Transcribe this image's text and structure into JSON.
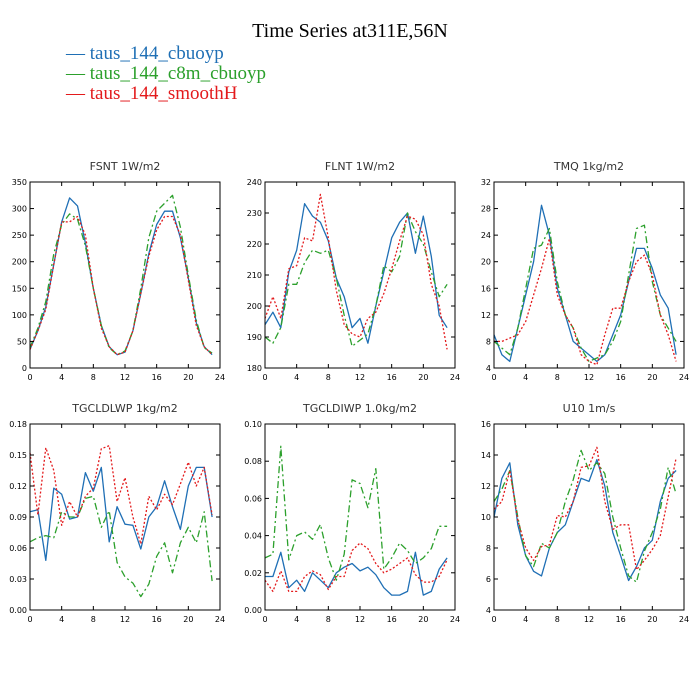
{
  "figure": {
    "title": "Time Series at311E,56N",
    "legend": [
      {
        "label": "— taus_144_cbuoyp",
        "color": "#1f6fb5"
      },
      {
        "label": "— taus_144_c8m_cbuoyp",
        "color": "#2ca02c"
      },
      {
        "label": "— taus_144_smoothH",
        "color": "#e31a1c"
      }
    ]
  },
  "chart_data": [
    {
      "type": "line",
      "title": "FSNT   1W/m2",
      "xlim": [
        0,
        24
      ],
      "ylim": [
        0,
        350
      ],
      "xticks": [
        0,
        4,
        8,
        12,
        16,
        20,
        24
      ],
      "yticks": [
        0,
        50,
        100,
        150,
        200,
        250,
        300,
        350
      ],
      "ytick_labels": [
        "0",
        "50",
        "100",
        "150",
        "200",
        "250",
        "300",
        "350"
      ],
      "x": [
        0,
        1,
        2,
        3,
        4,
        5,
        6,
        7,
        8,
        9,
        10,
        11,
        12,
        13,
        14,
        15,
        16,
        17,
        18,
        19,
        20,
        21,
        22,
        23
      ],
      "series": [
        {
          "name": "taus_144_cbuoyp",
          "color": "#1f6fb5",
          "dash": "",
          "values": [
            35,
            70,
            115,
            195,
            275,
            320,
            305,
            235,
            150,
            80,
            40,
            25,
            30,
            70,
            140,
            215,
            270,
            295,
            295,
            245,
            170,
            85,
            40,
            25
          ]
        },
        {
          "name": "taus_144_c8m_cbuoyp",
          "color": "#2ca02c",
          "dash": "7,3,2,3",
          "values": [
            38,
            75,
            125,
            215,
            270,
            290,
            280,
            230,
            150,
            80,
            38,
            25,
            32,
            70,
            150,
            245,
            295,
            310,
            325,
            265,
            175,
            90,
            38,
            28
          ]
        },
        {
          "name": "taus_144_smoothH",
          "color": "#e31a1c",
          "dash": "2,2",
          "values": [
            35,
            70,
            110,
            195,
            275,
            275,
            285,
            250,
            150,
            75,
            40,
            25,
            30,
            70,
            140,
            210,
            260,
            285,
            285,
            250,
            165,
            80,
            40,
            25
          ]
        }
      ]
    },
    {
      "type": "line",
      "title": "FLNT   1W/m2",
      "xlim": [
        0,
        24
      ],
      "ylim": [
        180,
        240
      ],
      "xticks": [
        0,
        4,
        8,
        12,
        16,
        20,
        24
      ],
      "yticks": [
        180,
        190,
        200,
        210,
        220,
        230,
        240
      ],
      "ytick_labels": [
        "180",
        "190",
        "200",
        "210",
        "220",
        "230",
        "240"
      ],
      "x": [
        0,
        1,
        2,
        3,
        4,
        5,
        6,
        7,
        8,
        9,
        10,
        11,
        12,
        13,
        14,
        15,
        16,
        17,
        18,
        19,
        20,
        21,
        22,
        23
      ],
      "series": [
        {
          "name": "taus_144_cbuoyp",
          "color": "#1f6fb5",
          "dash": "",
          "values": [
            194,
            198,
            193,
            211,
            218,
            233,
            229,
            227,
            221,
            209,
            203,
            193,
            196,
            188,
            200,
            211,
            222,
            227,
            230,
            217,
            229,
            216,
            197,
            193
          ]
        },
        {
          "name": "taus_144_c8m_cbuoyp",
          "color": "#2ca02c",
          "dash": "7,3,2,3",
          "values": [
            190,
            188,
            193,
            207,
            207,
            214,
            218,
            217,
            218,
            209,
            197,
            187,
            189,
            191,
            200,
            213,
            211,
            216,
            230,
            224,
            220,
            211,
            203,
            207
          ]
        },
        {
          "name": "taus_144_smoothH",
          "color": "#e31a1c",
          "dash": "2,2",
          "values": [
            196,
            203,
            196,
            212,
            213,
            222,
            221,
            236,
            222,
            205,
            194,
            191,
            190,
            196,
            198,
            204,
            212,
            221,
            229,
            228,
            223,
            207,
            200,
            186
          ]
        }
      ]
    },
    {
      "type": "line",
      "title": "TMQ   1kg/m2",
      "xlim": [
        0,
        24
      ],
      "ylim": [
        4,
        32
      ],
      "xticks": [
        0,
        4,
        8,
        12,
        16,
        20,
        24
      ],
      "yticks": [
        4,
        8,
        12,
        16,
        20,
        24,
        28,
        32
      ],
      "ytick_labels": [
        "4",
        "8",
        "12",
        "16",
        "20",
        "24",
        "28",
        "32"
      ],
      "x": [
        0,
        1,
        2,
        3,
        4,
        5,
        6,
        7,
        8,
        9,
        10,
        11,
        12,
        13,
        14,
        15,
        16,
        17,
        18,
        19,
        20,
        21,
        22,
        23
      ],
      "series": [
        {
          "name": "taus_144_cbuoyp",
          "color": "#1f6fb5",
          "dash": "",
          "values": [
            9,
            6,
            5,
            10,
            15,
            20,
            28.5,
            24,
            16,
            12,
            8,
            7,
            6,
            5,
            6,
            9,
            12,
            17,
            22,
            22,
            19,
            15,
            13,
            6
          ]
        },
        {
          "name": "taus_144_c8m_cbuoyp",
          "color": "#2ca02c",
          "dash": "7,3,2,3",
          "values": [
            8,
            7,
            6,
            10,
            16,
            22,
            22.5,
            25,
            17,
            12,
            10,
            7,
            5,
            5.5,
            6,
            8,
            11,
            18,
            25,
            25.5,
            17,
            12,
            10,
            8
          ]
        },
        {
          "name": "taus_144_smoothH",
          "color": "#e31a1c",
          "dash": "2,2",
          "values": [
            8,
            8,
            8.5,
            9,
            11,
            15,
            19,
            23.5,
            15,
            12,
            10,
            6,
            5,
            4.5,
            9,
            13,
            13,
            17,
            20,
            21,
            18,
            12,
            9,
            5
          ]
        }
      ]
    },
    {
      "type": "line",
      "title": "TGCLDLWP   1kg/m2",
      "xlim": [
        0,
        24
      ],
      "ylim": [
        0,
        0.18
      ],
      "xticks": [
        0,
        4,
        8,
        12,
        16,
        20,
        24
      ],
      "yticks": [
        0,
        0.03,
        0.06,
        0.09,
        0.12,
        0.15,
        0.18
      ],
      "ytick_labels": [
        "0.00",
        "0.03",
        "0.06",
        "0.09",
        "0.12",
        "0.15",
        "0.18"
      ],
      "x": [
        0,
        1,
        2,
        3,
        4,
        5,
        6,
        7,
        8,
        9,
        10,
        11,
        12,
        13,
        14,
        15,
        16,
        17,
        18,
        19,
        20,
        21,
        22,
        23
      ],
      "series": [
        {
          "name": "taus_144_cbuoyp",
          "color": "#1f6fb5",
          "dash": "",
          "values": [
            0.095,
            0.097,
            0.048,
            0.118,
            0.112,
            0.088,
            0.09,
            0.133,
            0.115,
            0.138,
            0.066,
            0.1,
            0.083,
            0.082,
            0.059,
            0.09,
            0.1,
            0.125,
            0.1,
            0.078,
            0.12,
            0.138,
            0.138,
            0.09
          ]
        },
        {
          "name": "taus_144_c8m_cbuoyp",
          "color": "#2ca02c",
          "dash": "7,3,2,3",
          "values": [
            0.066,
            0.07,
            0.072,
            0.07,
            0.095,
            0.09,
            0.09,
            0.108,
            0.11,
            0.08,
            0.096,
            0.046,
            0.032,
            0.026,
            0.013,
            0.025,
            0.052,
            0.065,
            0.036,
            0.065,
            0.08,
            0.065,
            0.095,
            0.028
          ]
        },
        {
          "name": "taus_144_smoothH",
          "color": "#e31a1c",
          "dash": "2,2",
          "values": [
            0.152,
            0.092,
            0.157,
            0.135,
            0.082,
            0.105,
            0.09,
            0.11,
            0.118,
            0.156,
            0.159,
            0.105,
            0.128,
            0.09,
            0.064,
            0.11,
            0.097,
            0.112,
            0.102,
            0.122,
            0.143,
            0.12,
            0.138,
            0.092
          ]
        }
      ]
    },
    {
      "type": "line",
      "title": "TGCLDIWP   1.0kg/m2",
      "xlim": [
        0,
        24
      ],
      "ylim": [
        0,
        0.1
      ],
      "xticks": [
        0,
        4,
        8,
        12,
        16,
        20,
        24
      ],
      "yticks": [
        0,
        0.02,
        0.04,
        0.06,
        0.08,
        0.1
      ],
      "ytick_labels": [
        "0.00",
        "0.02",
        "0.04",
        "0.06",
        "0.08",
        "0.10"
      ],
      "x": [
        0,
        1,
        2,
        3,
        4,
        5,
        6,
        7,
        8,
        9,
        10,
        11,
        12,
        13,
        14,
        15,
        16,
        17,
        18,
        19,
        20,
        21,
        22,
        23
      ],
      "series": [
        {
          "name": "taus_144_cbuoyp",
          "color": "#1f6fb5",
          "dash": "",
          "values": [
            0.018,
            0.018,
            0.031,
            0.012,
            0.016,
            0.01,
            0.02,
            0.016,
            0.012,
            0.02,
            0.023,
            0.025,
            0.021,
            0.023,
            0.019,
            0.012,
            0.008,
            0.008,
            0.01,
            0.031,
            0.008,
            0.01,
            0.022,
            0.028
          ]
        },
        {
          "name": "taus_144_c8m_cbuoyp",
          "color": "#2ca02c",
          "dash": "7,3,2,3",
          "values": [
            0.028,
            0.03,
            0.088,
            0.027,
            0.04,
            0.042,
            0.038,
            0.046,
            0.028,
            0.016,
            0.03,
            0.07,
            0.068,
            0.055,
            0.076,
            0.022,
            0.028,
            0.036,
            0.032,
            0.025,
            0.028,
            0.033,
            0.045,
            0.045
          ]
        },
        {
          "name": "taus_144_smoothH",
          "color": "#e31a1c",
          "dash": "2,2",
          "values": [
            0.016,
            0.01,
            0.021,
            0.01,
            0.01,
            0.018,
            0.021,
            0.019,
            0.011,
            0.018,
            0.018,
            0.032,
            0.036,
            0.033,
            0.025,
            0.02,
            0.022,
            0.025,
            0.028,
            0.019,
            0.015,
            0.015,
            0.018,
            0.027
          ]
        }
      ]
    },
    {
      "type": "line",
      "title": "U10   1m/s",
      "xlim": [
        0,
        24
      ],
      "ylim": [
        4,
        16
      ],
      "xticks": [
        0,
        4,
        8,
        12,
        16,
        20,
        24
      ],
      "yticks": [
        4,
        6,
        8,
        10,
        12,
        14,
        16
      ],
      "ytick_labels": [
        "4",
        "6",
        "8",
        "10",
        "12",
        "14",
        "16"
      ],
      "x": [
        0,
        1,
        2,
        3,
        4,
        5,
        6,
        7,
        8,
        9,
        10,
        11,
        12,
        13,
        14,
        15,
        16,
        17,
        18,
        19,
        20,
        21,
        22,
        23
      ],
      "series": [
        {
          "name": "taus_144_cbuoyp",
          "color": "#1f6fb5",
          "dash": "",
          "values": [
            10,
            12.5,
            13.5,
            9.5,
            7.5,
            6.5,
            6.2,
            8,
            9,
            9.5,
            11,
            12.5,
            12.3,
            13.7,
            12,
            9,
            7.5,
            5.9,
            6.8,
            8,
            8.5,
            11,
            12.5,
            13
          ]
        },
        {
          "name": "taus_144_c8m_cbuoyp",
          "color": "#2ca02c",
          "dash": "7,3,2,3",
          "values": [
            11,
            11.8,
            13,
            10,
            7.5,
            6.8,
            8.3,
            8,
            9,
            11,
            12.4,
            14.3,
            13,
            13.5,
            12.8,
            10,
            8,
            6.2,
            5.8,
            7.8,
            9,
            10.5,
            13.2,
            11.5
          ]
        },
        {
          "name": "taus_144_smoothH",
          "color": "#e31a1c",
          "dash": "2,2",
          "values": [
            10.5,
            11,
            13,
            9.8,
            8,
            7.2,
            8.1,
            8.2,
            10.1,
            10,
            11,
            13.2,
            13.3,
            14.5,
            11,
            9.2,
            9.5,
            9.5,
            6.6,
            7.2,
            7.9,
            8.8,
            11.3,
            13.8
          ]
        }
      ]
    }
  ]
}
